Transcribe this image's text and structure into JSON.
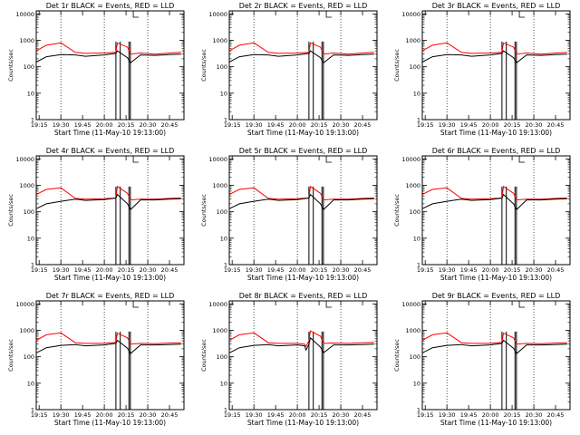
{
  "colors": {
    "events": "#000000",
    "lld": "#ff0000",
    "background": "#ffffff"
  },
  "x_tick_labels": [
    "19:15",
    "19:30",
    "19:45",
    "20:00",
    "20:15",
    "20:30",
    "20:45"
  ],
  "y_tick_labels": [
    "1",
    "10",
    "100",
    "1000",
    "10000"
  ],
  "chart_data": [
    {
      "type": "line",
      "title": "Det 1r BLACK = Events, RED = LLD",
      "xlabel": "Start Time (11-May-10 19:13:00)",
      "ylabel": "Counts/sec",
      "yscale": "log",
      "ylim": [
        1,
        13000
      ],
      "xlim": [
        "19:13",
        "20:55"
      ],
      "dotted_vlines": [
        "19:30",
        "20:00",
        "20:30"
      ],
      "gaps": [
        [
          "20:08",
          "20:11"
        ],
        [
          "20:17",
          "20:18"
        ]
      ],
      "series": [
        {
          "color": "red",
          "x": [
            "19:13",
            "19:20",
            "19:30",
            "19:40",
            "19:47",
            "20:00",
            "20:08",
            "20:09",
            "20:16",
            "20:18",
            "20:25",
            "20:35",
            "20:45",
            "20:53"
          ],
          "y": [
            400,
            650,
            800,
            350,
            320,
            330,
            350,
            800,
            550,
            300,
            330,
            300,
            330,
            350
          ]
        },
        {
          "color": "black",
          "x": [
            "19:13",
            "19:20",
            "19:30",
            "19:40",
            "19:47",
            "20:00",
            "20:08",
            "20:09",
            "20:16",
            "20:18",
            "20:25",
            "20:35",
            "20:45",
            "20:53"
          ],
          "y": [
            150,
            240,
            290,
            280,
            250,
            280,
            320,
            400,
            220,
            140,
            280,
            270,
            290,
            300
          ]
        }
      ]
    },
    {
      "type": "line",
      "title": "Det 2r BLACK = Events, RED = LLD",
      "xlabel": "Start Time (11-May-10 19:13:00)",
      "ylabel": "Counts/sec",
      "yscale": "log",
      "ylim": [
        1,
        13000
      ],
      "xlim": [
        "19:13",
        "20:55"
      ],
      "dotted_vlines": [
        "19:30",
        "20:00",
        "20:30"
      ],
      "gaps": [
        [
          "20:08",
          "20:11"
        ],
        [
          "20:17",
          "20:18"
        ]
      ],
      "series": [
        {
          "color": "red",
          "x": [
            "19:13",
            "19:20",
            "19:30",
            "19:40",
            "19:47",
            "20:00",
            "20:08",
            "20:09",
            "20:16",
            "20:18",
            "20:25",
            "20:35",
            "20:45",
            "20:53"
          ],
          "y": [
            400,
            650,
            800,
            350,
            320,
            330,
            350,
            800,
            550,
            300,
            330,
            300,
            330,
            350
          ]
        },
        {
          "color": "black",
          "x": [
            "19:13",
            "19:20",
            "19:30",
            "19:40",
            "19:47",
            "20:00",
            "20:08",
            "20:09",
            "20:16",
            "20:18",
            "20:25",
            "20:35",
            "20:45",
            "20:53"
          ],
          "y": [
            150,
            240,
            290,
            280,
            250,
            280,
            320,
            400,
            220,
            140,
            280,
            270,
            290,
            300
          ]
        }
      ]
    },
    {
      "type": "line",
      "title": "Det 3r BLACK = Events, RED = LLD",
      "xlabel": "Start Time (11-May-10 19:13:00)",
      "ylabel": "Counts/sec",
      "yscale": "log",
      "ylim": [
        1,
        13000
      ],
      "xlim": [
        "19:13",
        "20:55"
      ],
      "dotted_vlines": [
        "19:30",
        "20:00",
        "20:30"
      ],
      "gaps": [
        [
          "20:08",
          "20:11"
        ],
        [
          "20:17",
          "20:18"
        ]
      ],
      "series": [
        {
          "color": "red",
          "x": [
            "19:13",
            "19:20",
            "19:30",
            "19:40",
            "19:47",
            "20:00",
            "20:08",
            "20:09",
            "20:16",
            "20:18",
            "20:25",
            "20:35",
            "20:45",
            "20:53"
          ],
          "y": [
            400,
            650,
            800,
            350,
            320,
            330,
            350,
            800,
            550,
            300,
            330,
            300,
            330,
            350
          ]
        },
        {
          "color": "black",
          "x": [
            "19:13",
            "19:20",
            "19:30",
            "19:40",
            "19:47",
            "20:00",
            "20:08",
            "20:09",
            "20:16",
            "20:18",
            "20:25",
            "20:35",
            "20:45",
            "20:53"
          ],
          "y": [
            150,
            240,
            290,
            280,
            250,
            280,
            320,
            400,
            220,
            140,
            280,
            270,
            290,
            300
          ]
        }
      ]
    },
    {
      "type": "line",
      "title": "Det 4r BLACK = Events, RED = LLD",
      "xlabel": "Start Time (11-May-10 19:13:00)",
      "ylabel": "Counts/sec",
      "yscale": "log",
      "ylim": [
        1,
        13000
      ],
      "xlim": [
        "19:13",
        "20:55"
      ],
      "dotted_vlines": [
        "19:30",
        "20:00",
        "20:30"
      ],
      "gaps": [
        [
          "20:08",
          "20:11"
        ],
        [
          "20:17",
          "20:18"
        ]
      ],
      "series": [
        {
          "color": "red",
          "x": [
            "19:13",
            "19:20",
            "19:30",
            "19:40",
            "19:47",
            "20:00",
            "20:08",
            "20:09",
            "20:16",
            "20:18",
            "20:25",
            "20:35",
            "20:45",
            "20:53"
          ],
          "y": [
            450,
            700,
            800,
            320,
            300,
            310,
            330,
            900,
            500,
            280,
            300,
            300,
            320,
            330
          ]
        },
        {
          "color": "black",
          "x": [
            "19:13",
            "19:20",
            "19:30",
            "19:40",
            "19:47",
            "20:00",
            "20:08",
            "20:09",
            "20:16",
            "20:18",
            "20:25",
            "20:35",
            "20:45",
            "20:53"
          ],
          "y": [
            130,
            200,
            250,
            300,
            270,
            290,
            330,
            450,
            200,
            120,
            280,
            280,
            300,
            310
          ]
        }
      ]
    },
    {
      "type": "line",
      "title": "Det 5r BLACK = Events, RED = LLD",
      "xlabel": "Start Time (11-May-10 19:13:00)",
      "ylabel": "Counts/sec",
      "yscale": "log",
      "ylim": [
        1,
        13000
      ],
      "xlim": [
        "19:13",
        "20:55"
      ],
      "dotted_vlines": [
        "19:30",
        "20:00",
        "20:30"
      ],
      "gaps": [
        [
          "20:08",
          "20:11"
        ],
        [
          "20:17",
          "20:18"
        ]
      ],
      "series": [
        {
          "color": "red",
          "x": [
            "19:13",
            "19:20",
            "19:30",
            "19:40",
            "19:47",
            "20:00",
            "20:08",
            "20:09",
            "20:16",
            "20:18",
            "20:25",
            "20:35",
            "20:45",
            "20:53"
          ],
          "y": [
            450,
            700,
            800,
            320,
            300,
            310,
            330,
            900,
            500,
            280,
            300,
            300,
            320,
            330
          ]
        },
        {
          "color": "black",
          "x": [
            "19:13",
            "19:20",
            "19:30",
            "19:40",
            "19:47",
            "20:00",
            "20:08",
            "20:09",
            "20:16",
            "20:18",
            "20:25",
            "20:35",
            "20:45",
            "20:53"
          ],
          "y": [
            130,
            200,
            250,
            300,
            270,
            290,
            330,
            450,
            200,
            120,
            280,
            280,
            300,
            310
          ]
        }
      ]
    },
    {
      "type": "line",
      "title": "Det 6r BLACK = Events, RED = LLD",
      "xlabel": "Start Time (11-May-10 19:13:00)",
      "ylabel": "Counts/sec",
      "yscale": "log",
      "ylim": [
        1,
        13000
      ],
      "xlim": [
        "19:13",
        "20:55"
      ],
      "dotted_vlines": [
        "19:30",
        "20:00",
        "20:30"
      ],
      "gaps": [
        [
          "20:08",
          "20:11"
        ],
        [
          "20:17",
          "20:18"
        ]
      ],
      "series": [
        {
          "color": "red",
          "x": [
            "19:13",
            "19:20",
            "19:30",
            "19:40",
            "19:47",
            "20:00",
            "20:08",
            "20:09",
            "20:16",
            "20:18",
            "20:25",
            "20:35",
            "20:45",
            "20:53"
          ],
          "y": [
            450,
            700,
            800,
            320,
            300,
            310,
            330,
            900,
            500,
            280,
            300,
            300,
            320,
            330
          ]
        },
        {
          "color": "black",
          "x": [
            "19:13",
            "19:20",
            "19:30",
            "19:40",
            "19:47",
            "20:00",
            "20:08",
            "20:09",
            "20:16",
            "20:18",
            "20:25",
            "20:35",
            "20:45",
            "20:53"
          ],
          "y": [
            130,
            200,
            250,
            300,
            270,
            290,
            330,
            450,
            200,
            120,
            280,
            280,
            300,
            310
          ]
        }
      ]
    },
    {
      "type": "line",
      "title": "Det 7r BLACK = Events, RED = LLD",
      "xlabel": "Start Time (11-May-10 19:13:00)",
      "ylabel": "Counts/sec",
      "yscale": "log",
      "ylim": [
        1,
        13000
      ],
      "xlim": [
        "19:13",
        "20:55"
      ],
      "dotted_vlines": [
        "19:30",
        "20:00",
        "20:30"
      ],
      "gaps": [
        [
          "20:08",
          "20:11"
        ],
        [
          "20:17",
          "20:18"
        ]
      ],
      "series": [
        {
          "color": "red",
          "x": [
            "19:13",
            "19:20",
            "19:30",
            "19:40",
            "19:47",
            "20:00",
            "20:08",
            "20:09",
            "20:16",
            "20:18",
            "20:25",
            "20:35",
            "20:45",
            "20:53"
          ],
          "y": [
            420,
            680,
            800,
            340,
            320,
            320,
            350,
            780,
            520,
            300,
            320,
            310,
            330,
            340
          ]
        },
        {
          "color": "black",
          "x": [
            "19:13",
            "19:20",
            "19:30",
            "19:40",
            "19:47",
            "20:00",
            "20:08",
            "20:09",
            "20:16",
            "20:18",
            "20:25",
            "20:35",
            "20:45",
            "20:53"
          ],
          "y": [
            140,
            220,
            270,
            290,
            260,
            280,
            320,
            420,
            210,
            130,
            280,
            280,
            290,
            300
          ]
        }
      ]
    },
    {
      "type": "line",
      "title": "Det 8r BLACK = Events, RED = LLD",
      "xlabel": "Start Time (11-May-10 19:13:00)",
      "ylabel": "Counts/sec",
      "yscale": "log",
      "ylim": [
        1,
        13000
      ],
      "xlim": [
        "19:13",
        "20:55"
      ],
      "dotted_vlines": [
        "19:30",
        "20:00",
        "20:30"
      ],
      "gaps": [
        [
          "20:08",
          "20:11"
        ],
        [
          "20:17",
          "20:18"
        ]
      ],
      "series": [
        {
          "color": "red",
          "x": [
            "19:13",
            "19:20",
            "19:30",
            "19:40",
            "19:47",
            "20:00",
            "20:05",
            "20:06",
            "20:08",
            "20:09",
            "20:16",
            "20:18",
            "20:25",
            "20:35",
            "20:45",
            "20:53"
          ],
          "y": [
            420,
            680,
            800,
            340,
            320,
            320,
            300,
            250,
            400,
            950,
            600,
            320,
            330,
            320,
            340,
            350
          ]
        },
        {
          "color": "black",
          "x": [
            "19:13",
            "19:20",
            "19:30",
            "19:40",
            "19:47",
            "20:00",
            "20:05",
            "20:06",
            "20:08",
            "20:09",
            "20:16",
            "20:18",
            "20:25",
            "20:35",
            "20:45",
            "20:53"
          ],
          "y": [
            140,
            220,
            270,
            290,
            260,
            280,
            260,
            180,
            300,
            520,
            230,
            140,
            280,
            280,
            290,
            300
          ]
        }
      ]
    },
    {
      "type": "line",
      "title": "Det 9r BLACK = Events, RED = LLD",
      "xlabel": "Start Time (11-May-10 19:13:00)",
      "ylabel": "Counts/sec",
      "yscale": "log",
      "ylim": [
        1,
        13000
      ],
      "xlim": [
        "19:13",
        "20:55"
      ],
      "dotted_vlines": [
        "19:30",
        "20:00",
        "20:30"
      ],
      "gaps": [
        [
          "20:08",
          "20:11"
        ],
        [
          "20:17",
          "20:18"
        ]
      ],
      "series": [
        {
          "color": "red",
          "x": [
            "19:13",
            "19:20",
            "19:30",
            "19:40",
            "19:47",
            "20:00",
            "20:08",
            "20:09",
            "20:16",
            "20:18",
            "20:25",
            "20:35",
            "20:45",
            "20:53"
          ],
          "y": [
            420,
            680,
            800,
            340,
            320,
            320,
            350,
            780,
            520,
            300,
            320,
            310,
            330,
            340
          ]
        },
        {
          "color": "black",
          "x": [
            "19:13",
            "19:20",
            "19:30",
            "19:40",
            "19:47",
            "20:00",
            "20:08",
            "20:09",
            "20:16",
            "20:18",
            "20:25",
            "20:35",
            "20:45",
            "20:53"
          ],
          "y": [
            140,
            220,
            270,
            290,
            260,
            280,
            320,
            420,
            210,
            130,
            280,
            280,
            290,
            300
          ]
        }
      ]
    }
  ]
}
